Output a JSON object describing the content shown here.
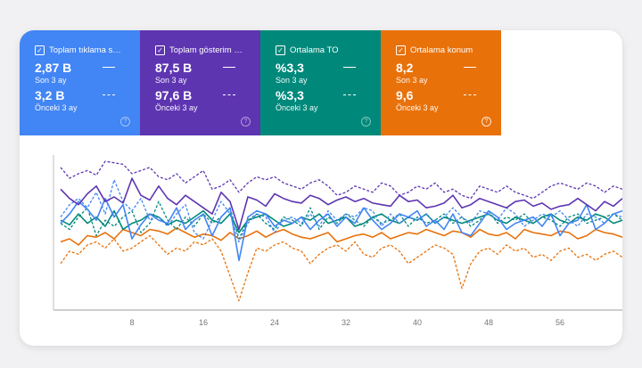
{
  "metrics": [
    {
      "title": "Toplam tıklama sayısı",
      "title_visible": "Toplam tıklama s…",
      "value": "2,87 B",
      "value_label": "Son 3 ay",
      "prev_value": "3,2 B",
      "prev_label": "Önceki 3 ay",
      "color": "#4285f4"
    },
    {
      "title": "Toplam gösterim sayısı",
      "title_visible": "Toplam gösterim …",
      "value": "87,5 B",
      "value_label": "Son 3 ay",
      "prev_value": "97,6 B",
      "prev_label": "Önceki 3 ay",
      "color": "#5e35b1"
    },
    {
      "title": "Ortalama TO",
      "title_visible": "Ortalama TO",
      "value": "%3,3",
      "value_label": "Son 3 ay",
      "prev_value": "%3,3",
      "prev_label": "Önceki 3 ay",
      "color": "#00897b"
    },
    {
      "title": "Ortalama konum",
      "title_visible": "Ortalama konum",
      "value": "8,2",
      "value_label": "Son 3 ay",
      "prev_value": "9,6",
      "prev_label": "Önceki 3 ay",
      "color": "#e8710a"
    }
  ],
  "icons": {
    "checkbox": "checkbox-checked-icon",
    "help": "help-circle-icon"
  },
  "chart_data": {
    "type": "line",
    "x_ticks": [
      8,
      16,
      24,
      32,
      40,
      48,
      56
    ],
    "xlim": [
      0,
      63
    ],
    "ylim": [
      0,
      100
    ],
    "grid": false,
    "series": [
      {
        "metric": "Toplam gösterim sayısı",
        "period": "Son 3 ay",
        "style": "solid",
        "color": "#5e35b1",
        "values": [
          78,
          72,
          68,
          75,
          80,
          70,
          73,
          69,
          85,
          74,
          71,
          80,
          72,
          68,
          74,
          70,
          66,
          62,
          76,
          70,
          52,
          73,
          71,
          67,
          75,
          72,
          70,
          69,
          74,
          72,
          68,
          71,
          73,
          70,
          72,
          69,
          68,
          67,
          74,
          70,
          71,
          66,
          67,
          69,
          74,
          66,
          68,
          72,
          70,
          68,
          66,
          70,
          71,
          67,
          69,
          65,
          67,
          68,
          72,
          68,
          64,
          70,
          67,
          72
        ]
      },
      {
        "metric": "Toplam gösterim sayısı",
        "period": "Önceki 3 ay",
        "style": "dashed",
        "color": "#5e35b1",
        "values": [
          92,
          85,
          88,
          90,
          87,
          96,
          95,
          94,
          88,
          90,
          92,
          86,
          84,
          88,
          82,
          86,
          90,
          78,
          80,
          84,
          76,
          82,
          86,
          84,
          86,
          82,
          80,
          78,
          82,
          84,
          80,
          74,
          76,
          80,
          78,
          76,
          82,
          80,
          74,
          76,
          80,
          78,
          82,
          76,
          78,
          74,
          72,
          80,
          78,
          76,
          80,
          76,
          74,
          72,
          76,
          80,
          82,
          80,
          78,
          82,
          80,
          76,
          80,
          78
        ]
      },
      {
        "metric": "Toplam tıklama sayısı",
        "period": "Son 3 ay",
        "style": "solid",
        "color": "#4285f4",
        "values": [
          56,
          62,
          70,
          65,
          58,
          72,
          60,
          68,
          46,
          55,
          62,
          58,
          56,
          66,
          52,
          58,
          62,
          48,
          60,
          66,
          32,
          60,
          64,
          62,
          54,
          58,
          56,
          60,
          52,
          58,
          62,
          54,
          60,
          56,
          66,
          58,
          52,
          56,
          62,
          60,
          64,
          54,
          58,
          52,
          62,
          50,
          48,
          56,
          64,
          60,
          52,
          56,
          58,
          60,
          54,
          62,
          48,
          56,
          58,
          68,
          52,
          56,
          62,
          64
        ]
      },
      {
        "metric": "Toplam tıklama sayısı",
        "period": "Önceki 3 ay",
        "style": "dashed",
        "color": "#4285f4",
        "values": [
          60,
          68,
          72,
          66,
          76,
          62,
          84,
          70,
          64,
          72,
          58,
          60,
          54,
          62,
          68,
          50,
          46,
          58,
          70,
          62,
          44,
          56,
          62,
          60,
          50,
          58,
          60,
          56,
          62,
          54,
          64,
          58,
          62,
          60,
          66,
          64,
          54,
          62,
          56,
          60,
          58,
          62,
          56,
          60,
          66,
          60,
          56,
          64,
          62,
          58,
          66,
          62,
          54,
          58,
          62,
          60,
          64,
          58,
          54,
          62,
          60,
          56,
          62,
          60
        ]
      },
      {
        "metric": "Ortalama TO",
        "period": "Son 3 ay",
        "style": "solid",
        "color": "#00897b",
        "values": [
          58,
          55,
          62,
          56,
          60,
          54,
          64,
          52,
          56,
          58,
          62,
          60,
          55,
          58,
          56,
          60,
          64,
          58,
          56,
          62,
          50,
          58,
          60,
          62,
          58,
          54,
          56,
          60,
          58,
          62,
          56,
          58,
          60,
          54,
          56,
          60,
          62,
          58,
          56,
          60,
          58,
          62,
          56,
          60,
          58,
          56,
          58,
          60,
          62,
          58,
          56,
          60,
          58,
          56,
          60,
          62,
          58,
          56,
          60,
          58,
          62,
          60,
          56,
          58
        ]
      },
      {
        "metric": "Ortalama TO",
        "period": "Önceki 3 ay",
        "style": "dashed",
        "color": "#00897b",
        "values": [
          56,
          52,
          60,
          66,
          48,
          58,
          54,
          60,
          64,
          50,
          56,
          70,
          58,
          52,
          60,
          54,
          62,
          56,
          60,
          66,
          46,
          58,
          62,
          56,
          52,
          60,
          58,
          54,
          66,
          52,
          60,
          56,
          62,
          58,
          54,
          60,
          56,
          58,
          62,
          54,
          60,
          56,
          58,
          62,
          56,
          60,
          54,
          58,
          64,
          56,
          60,
          58,
          62,
          56,
          60,
          58,
          54,
          60,
          62,
          56,
          58,
          60,
          62,
          58
        ]
      },
      {
        "metric": "Ortalama konum",
        "period": "Son 3 ay",
        "style": "solid",
        "color": "#e8710a",
        "values": [
          44,
          46,
          42,
          48,
          47,
          50,
          46,
          52,
          50,
          48,
          52,
          51,
          49,
          53,
          50,
          47,
          49,
          48,
          45,
          50,
          46,
          48,
          51,
          47,
          50,
          52,
          49,
          47,
          46,
          48,
          50,
          44,
          46,
          48,
          49,
          47,
          50,
          46,
          48,
          50,
          49,
          52,
          50,
          48,
          51,
          50,
          47,
          52,
          49,
          48,
          50,
          46,
          52,
          50,
          49,
          48,
          51,
          50,
          46,
          48,
          52,
          50,
          49,
          47
        ]
      },
      {
        "metric": "Ortalama konum",
        "period": "Önceki 3 ay",
        "style": "dashed",
        "color": "#e8710a",
        "values": [
          30,
          38,
          36,
          42,
          44,
          40,
          46,
          38,
          40,
          44,
          48,
          42,
          36,
          40,
          38,
          44,
          42,
          46,
          38,
          22,
          6,
          24,
          40,
          38,
          42,
          44,
          40,
          38,
          30,
          36,
          40,
          42,
          38,
          44,
          36,
          34,
          40,
          42,
          38,
          30,
          34,
          38,
          42,
          40,
          36,
          14,
          30,
          38,
          40,
          36,
          42,
          38,
          40,
          34,
          36,
          32,
          38,
          40,
          34,
          36,
          32,
          36,
          38,
          34
        ]
      }
    ]
  }
}
